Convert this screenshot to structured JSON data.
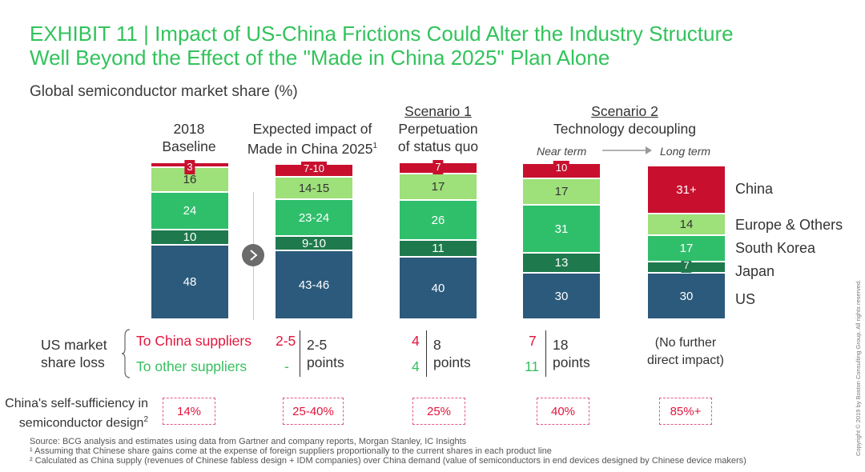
{
  "title_line1": "EXHIBIT 11 | Impact of US-China Frictions Could Alter the Industry Structure",
  "title_line2": "Well Beyond the Effect of the \"Made in China 2025\" Plan Alone",
  "subtitle": "Global semiconductor market share (%)",
  "columns": {
    "c1": {
      "line1": "2018",
      "line2": "Baseline"
    },
    "c2": {
      "line1": "Expected impact of",
      "line2": "Made in China 2025",
      "sup": "1"
    },
    "c3": {
      "scenario": "Scenario 1",
      "line1": "Perpetuation",
      "line2": "of status quo"
    },
    "c45": {
      "scenario": "Scenario 2",
      "line1": "Technology decoupling",
      "near": "Near term",
      "long": "Long term"
    }
  },
  "colors": {
    "china": "#c8102e",
    "europe": "#9ee07a",
    "korea": "#2fbf6b",
    "japan": "#1e7a4d",
    "us": "#2b5a7c"
  },
  "legend": [
    "China",
    "Europe & Others",
    "South Korea",
    "Japan",
    "US"
  ],
  "chart_data": {
    "type": "stacked-bar",
    "title": "Global semiconductor market share (%)",
    "categories": [
      "2018 Baseline",
      "Expected impact of Made in China 2025",
      "Scenario 1: Perpetuation of status quo",
      "Scenario 2: Near term",
      "Scenario 2: Long term"
    ],
    "series": [
      {
        "name": "US",
        "values": [
          48,
          44.5,
          40,
          30,
          30
        ],
        "labels": [
          "48",
          "43-46",
          "40",
          "30",
          "30"
        ]
      },
      {
        "name": "Japan",
        "values": [
          10,
          9.5,
          11,
          13,
          7
        ],
        "labels": [
          "10",
          "9-10",
          "11",
          "13",
          "7"
        ]
      },
      {
        "name": "South Korea",
        "values": [
          24,
          23.5,
          26,
          31,
          17
        ],
        "labels": [
          "24",
          "23-24",
          "26",
          "31",
          "17"
        ]
      },
      {
        "name": "Europe & Others",
        "values": [
          16,
          14.5,
          17,
          17,
          14
        ],
        "labels": [
          "16",
          "14-15",
          "17",
          "17",
          "14"
        ]
      },
      {
        "name": "China",
        "values": [
          3,
          8.5,
          7,
          10,
          31
        ],
        "labels": [
          "3",
          "7-10",
          "7",
          "10",
          "31+"
        ]
      }
    ]
  },
  "us_share_loss": {
    "label_line1": "US market",
    "label_line2": "share loss",
    "to_china_label": "To China suppliers",
    "to_other_label": "To other suppliers",
    "points_word": "points",
    "col2": {
      "china": "2-5",
      "other": "-",
      "total": "2-5"
    },
    "col3": {
      "china": "4",
      "other": "4",
      "total": "8"
    },
    "col4": {
      "china": "7",
      "other": "11",
      "total": "18"
    },
    "col5_line1": "(No further",
    "col5_line2": "direct impact)"
  },
  "self_sufficiency": {
    "label_line1": "China's self-sufficiency in",
    "label_line2": "semiconductor design",
    "label_sup": "2",
    "values": [
      "14%",
      "25-40%",
      "25%",
      "40%",
      "85%+"
    ]
  },
  "footnotes": {
    "source": "Source: BCG analysis and estimates using data from Gartner and company reports, Morgan Stanley, IC Insights",
    "note1": "¹ Assuming that Chinese share gains come at the expense of foreign suppliers proportionally to the current shares in each product line",
    "note2": "² Calculated as China supply (revenues of Chinese fabless design + IDM companies) over China demand (value of semiconductors in end devices designed by Chinese device makers)"
  },
  "copyright": "Copyright © 2019 by Boston Consulting Group. All rights reserved."
}
